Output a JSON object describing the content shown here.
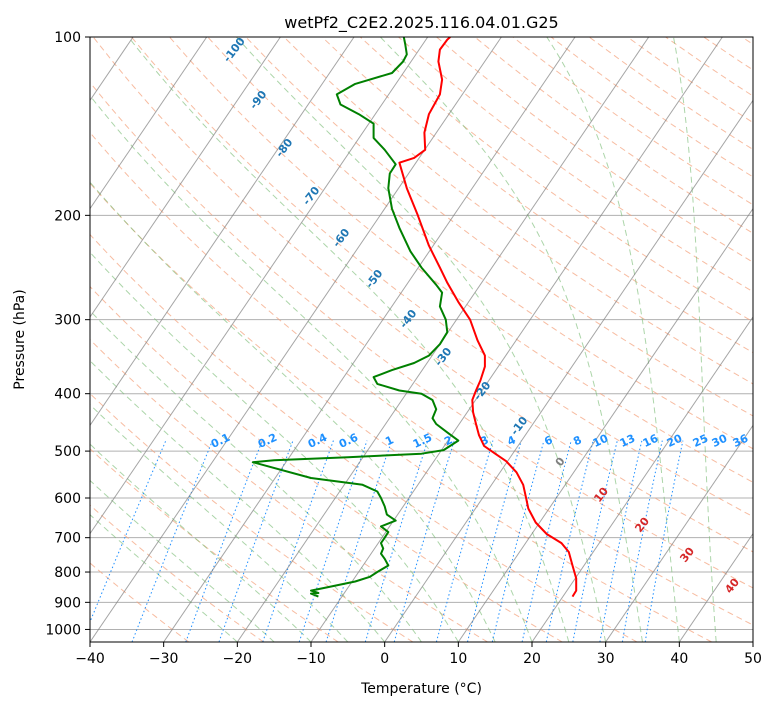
{
  "chart_data": {
    "type": "line",
    "title": "wetPf2_C2E2.2025.116.04.01.G25",
    "xlabel": "Temperature (°C)",
    "ylabel": "Pressure (hPa)",
    "xlim": [
      -40,
      50
    ],
    "ylim": [
      1050,
      100
    ],
    "y_scale": "log",
    "x_ticks": [
      "−40",
      "−30",
      "−20",
      "−10",
      "0",
      "10",
      "20",
      "30",
      "40",
      "50"
    ],
    "x_tick_values": [
      -40,
      -30,
      -20,
      -10,
      0,
      10,
      20,
      30,
      40,
      50
    ],
    "y_ticks": [
      "100",
      "200",
      "300",
      "400",
      "500",
      "600",
      "700",
      "800",
      "900",
      "1000"
    ],
    "y_tick_values": [
      100,
      200,
      300,
      400,
      500,
      600,
      700,
      800,
      900,
      1000
    ],
    "grid": true,
    "colors": {
      "temperature": "#ff0000",
      "dewpoint": "#008000",
      "dry_adiabat": "#f4a582",
      "moist_adiabat": "#7fbf7b",
      "mixing_ratio": "#1f8fff",
      "isotherm": "#808080",
      "theta_label": "#1f77b4",
      "mixing_label": "#1e90ff",
      "warm_label": "#d62728"
    },
    "series": [
      {
        "key": "temperature",
        "points": [
          [
            25.5,
            880
          ],
          [
            26.0,
            860
          ],
          [
            26.0,
            820
          ],
          [
            25.5,
            780
          ],
          [
            25.0,
            740
          ],
          [
            24.0,
            715
          ],
          [
            22.0,
            690
          ],
          [
            20.5,
            660
          ],
          [
            19.5,
            625
          ],
          [
            19.2,
            600
          ],
          [
            18.8,
            570
          ],
          [
            17.9,
            543
          ],
          [
            16.5,
            520
          ],
          [
            15.0,
            505
          ],
          [
            13.5,
            490
          ],
          [
            12.8,
            470
          ],
          [
            12.4,
            450
          ],
          [
            12.0,
            430
          ],
          [
            11.9,
            410
          ],
          [
            12.4,
            395
          ],
          [
            13.0,
            380
          ],
          [
            13.6,
            360
          ],
          [
            13.6,
            345
          ],
          [
            12.6,
            325
          ],
          [
            11.6,
            300
          ],
          [
            10.0,
            280
          ],
          [
            8.5,
            260
          ],
          [
            7.5,
            245
          ],
          [
            6.0,
            225
          ],
          [
            4.5,
            200
          ],
          [
            3.0,
            180
          ],
          [
            2.0,
            163
          ],
          [
            4.0,
            160
          ],
          [
            5.5,
            155
          ],
          [
            5.4,
            145
          ],
          [
            6.0,
            135
          ],
          [
            7.5,
            125
          ],
          [
            7.8,
            118
          ],
          [
            7.3,
            110
          ],
          [
            7.5,
            105
          ],
          [
            8.5,
            101
          ],
          [
            8.9,
            100
          ]
        ]
      },
      {
        "key": "dewpoint",
        "points": [
          [
            -9.0,
            880
          ],
          [
            -10.0,
            870
          ],
          [
            -9.0,
            868
          ],
          [
            -10.0,
            860
          ],
          [
            -8.0,
            850
          ],
          [
            -4.0,
            830
          ],
          [
            -2.0,
            815
          ],
          [
            -1.0,
            800
          ],
          [
            0.5,
            780
          ],
          [
            0.0,
            760
          ],
          [
            -0.5,
            745
          ],
          [
            -0.2,
            730
          ],
          [
            -0.5,
            715
          ],
          [
            0.0,
            700
          ],
          [
            0.5,
            685
          ],
          [
            -0.5,
            670
          ],
          [
            1.5,
            655
          ],
          [
            0.3,
            640
          ],
          [
            0.0,
            620
          ],
          [
            -0.5,
            600
          ],
          [
            -1.0,
            585
          ],
          [
            -3.0,
            570
          ],
          [
            -10.0,
            555
          ],
          [
            -17.9,
            522
          ],
          [
            -15.0,
            518
          ],
          [
            -5.0,
            512
          ],
          [
            5.0,
            505
          ],
          [
            8.0,
            498
          ],
          [
            10.0,
            480
          ],
          [
            8.5,
            465
          ],
          [
            7.0,
            450
          ],
          [
            6.5,
            440
          ],
          [
            7.0,
            425
          ],
          [
            6.5,
            410
          ],
          [
            5.0,
            400
          ],
          [
            2.0,
            395
          ],
          [
            -1.0,
            385
          ],
          [
            -1.5,
            375
          ],
          [
            1.0,
            365
          ],
          [
            4.0,
            355
          ],
          [
            6.0,
            345
          ],
          [
            7.5,
            330
          ],
          [
            8.5,
            315
          ],
          [
            8.3,
            300
          ],
          [
            7.5,
            285
          ],
          [
            7.8,
            270
          ],
          [
            7.0,
            262
          ],
          [
            5.0,
            245
          ],
          [
            3.5,
            230
          ],
          [
            2.0,
            210
          ],
          [
            1.0,
            195
          ],
          [
            0.5,
            180
          ],
          [
            0.7,
            170
          ],
          [
            1.5,
            164
          ],
          [
            0.0,
            155
          ],
          [
            -1.5,
            148
          ],
          [
            -1.5,
            140
          ],
          [
            -3.5,
            135
          ],
          [
            -6.0,
            130
          ],
          [
            -6.5,
            125
          ],
          [
            -4.0,
            120
          ],
          [
            1.0,
            115
          ],
          [
            2.5,
            110
          ],
          [
            3.0,
            107
          ],
          [
            2.8,
            103
          ],
          [
            2.6,
            100
          ]
        ]
      }
    ],
    "theta_labels": [
      "-100",
      "-90",
      "-80",
      "-70",
      "-60",
      "-50",
      "-40",
      "-30",
      "-20",
      "-10"
    ],
    "theta_label_values": [
      -100,
      -90,
      -80,
      -70,
      -60,
      -50,
      -40,
      -30,
      -20,
      -10
    ],
    "theta_warm_labels": [
      "0",
      "10",
      "20",
      "30",
      "40"
    ],
    "theta_warm_label_values": [
      0,
      10,
      20,
      30,
      40
    ],
    "mixing_ratio_labels": [
      "0.1",
      "0.2",
      "0.4",
      "0.6",
      "1",
      "1.5",
      "2",
      "3",
      "4",
      "6",
      "8",
      "10",
      "13",
      "16",
      "20",
      "25",
      "30",
      "36"
    ],
    "mixing_ratio_values": [
      0.1,
      0.2,
      0.4,
      0.6,
      1,
      1.5,
      2,
      3,
      4,
      6,
      8,
      10,
      13,
      16,
      20,
      25,
      30,
      36
    ]
  }
}
